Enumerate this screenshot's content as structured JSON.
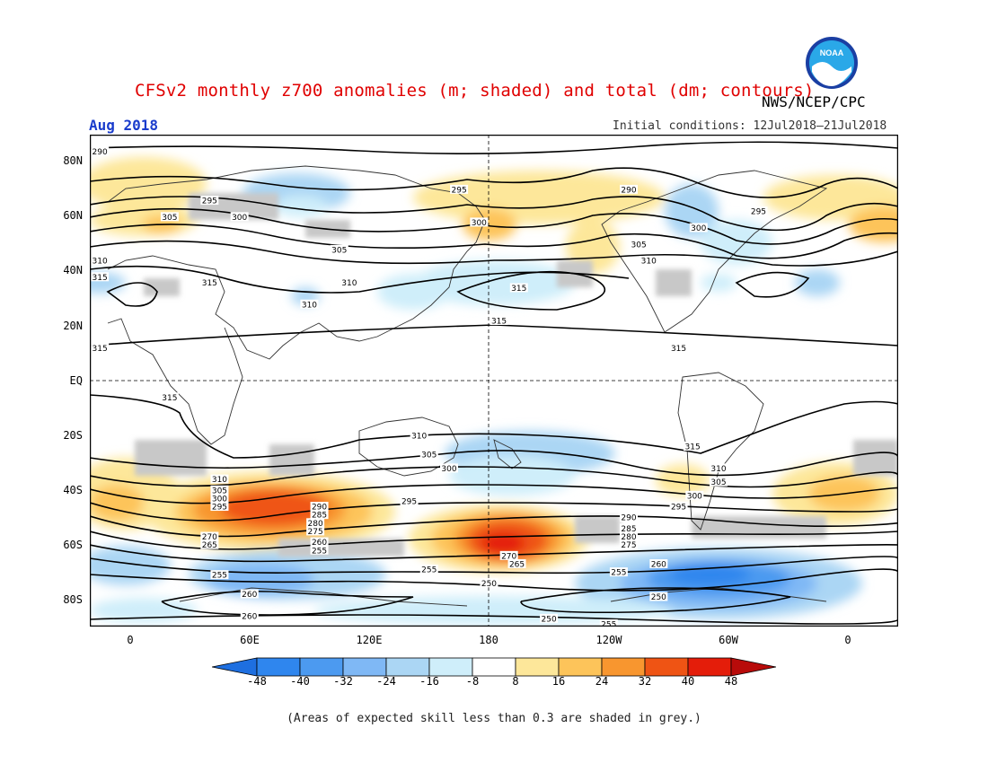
{
  "title": "CFSv2 monthly z700 anomalies (m; shaded) and total (dm; contours)",
  "agency": "NWS/NCEP/CPC",
  "logo_text": "NOAA",
  "month": "Aug 2018",
  "initial_conditions": "Initial conditions: 12Jul2018–21Jul2018",
  "lat_labels": [
    "80N",
    "60N",
    "40N",
    "20N",
    "EQ",
    "20S",
    "40S",
    "60S",
    "80S"
  ],
  "lon_labels": [
    "0",
    "60E",
    "120E",
    "180",
    "120W",
    "60W",
    "0"
  ],
  "colorbar": {
    "labels": [
      "-48",
      "-40",
      "-32",
      "-24",
      "-16",
      "-8",
      "8",
      "16",
      "24",
      "32",
      "40",
      "48"
    ],
    "colors": [
      "#1e6fe0",
      "#2f86ee",
      "#4c9af0",
      "#7fb8f5",
      "#abd6f4",
      "#cfeefa",
      "#ffffff",
      "#fde79a",
      "#fdc45a",
      "#f8962f",
      "#ef5414",
      "#e41d0a",
      "#b80b0a"
    ]
  },
  "skill_color": "#c8c8c8",
  "contour_labels": [
    {
      "text": "290",
      "lon": -15,
      "lat": 84
    },
    {
      "text": "295",
      "lon": 40,
      "lat": 66
    },
    {
      "text": "300",
      "lon": 55,
      "lat": 60
    },
    {
      "text": "305",
      "lon": 20,
      "lat": 60
    },
    {
      "text": "310",
      "lon": -15,
      "lat": 44
    },
    {
      "text": "315",
      "lon": 40,
      "lat": 36
    },
    {
      "text": "310",
      "lon": 90,
      "lat": 28
    },
    {
      "text": "310",
      "lon": 110,
      "lat": 36
    },
    {
      "text": "305",
      "lon": 105,
      "lat": 48
    },
    {
      "text": "295",
      "lon": 165,
      "lat": 70
    },
    {
      "text": "300",
      "lon": 175,
      "lat": 58
    },
    {
      "text": "315",
      "lon": -165,
      "lat": 34
    },
    {
      "text": "315",
      "lon": -175,
      "lat": 22
    },
    {
      "text": "290",
      "lon": -110,
      "lat": 70
    },
    {
      "text": "305",
      "lon": -105,
      "lat": 50
    },
    {
      "text": "310",
      "lon": -100,
      "lat": 44
    },
    {
      "text": "300",
      "lon": -75,
      "lat": 56
    },
    {
      "text": "295",
      "lon": -45,
      "lat": 62
    },
    {
      "text": "315",
      "lon": -15,
      "lat": 38
    },
    {
      "text": "315",
      "lon": -15,
      "lat": 12
    },
    {
      "text": "315",
      "lon": -85,
      "lat": 12
    },
    {
      "text": "315",
      "lon": 20,
      "lat": -6
    },
    {
      "text": "310",
      "lon": 145,
      "lat": -20
    },
    {
      "text": "305",
      "lon": 150,
      "lat": -27
    },
    {
      "text": "300",
      "lon": 160,
      "lat": -32
    },
    {
      "text": "295",
      "lon": 140,
      "lat": -44
    },
    {
      "text": "315",
      "lon": -78,
      "lat": -24
    },
    {
      "text": "310",
      "lon": -65,
      "lat": -32
    },
    {
      "text": "305",
      "lon": -65,
      "lat": -37
    },
    {
      "text": "300",
      "lon": -77,
      "lat": -42
    },
    {
      "text": "295",
      "lon": -85,
      "lat": -46
    },
    {
      "text": "290",
      "lon": -110,
      "lat": -50
    },
    {
      "text": "285",
      "lon": -110,
      "lat": -54
    },
    {
      "text": "280",
      "lon": -110,
      "lat": -57
    },
    {
      "text": "275",
      "lon": -110,
      "lat": -60
    },
    {
      "text": "310",
      "lon": 45,
      "lat": -36
    },
    {
      "text": "305",
      "lon": 45,
      "lat": -40
    },
    {
      "text": "300",
      "lon": 45,
      "lat": -43
    },
    {
      "text": "295",
      "lon": 45,
      "lat": -46
    },
    {
      "text": "290",
      "lon": 95,
      "lat": -46
    },
    {
      "text": "285",
      "lon": 95,
      "lat": -49
    },
    {
      "text": "280",
      "lon": 93,
      "lat": -52
    },
    {
      "text": "275",
      "lon": 93,
      "lat": -55
    },
    {
      "text": "270",
      "lon": 40,
      "lat": -57
    },
    {
      "text": "265",
      "lon": 40,
      "lat": -60
    },
    {
      "text": "260",
      "lon": 95,
      "lat": -59
    },
    {
      "text": "255",
      "lon": 95,
      "lat": -62
    },
    {
      "text": "270",
      "lon": 190,
      "lat": -64
    },
    {
      "text": "265",
      "lon": 194,
      "lat": -67
    },
    {
      "text": "255",
      "lon": 45,
      "lat": -71
    },
    {
      "text": "255",
      "lon": 150,
      "lat": -69
    },
    {
      "text": "250",
      "lon": 180,
      "lat": -74
    },
    {
      "text": "260",
      "lon": 60,
      "lat": -78
    },
    {
      "text": "260",
      "lon": 60,
      "lat": -86
    },
    {
      "text": "250",
      "lon": -150,
      "lat": -87
    },
    {
      "text": "255",
      "lon": -115,
      "lat": -70
    },
    {
      "text": "260",
      "lon": -95,
      "lat": -67
    },
    {
      "text": "250",
      "lon": -95,
      "lat": -79
    },
    {
      "text": "255",
      "lon": -120,
      "lat": -89
    }
  ],
  "footnote": "(Areas of expected skill less than 0.3 are shaded in grey.)"
}
